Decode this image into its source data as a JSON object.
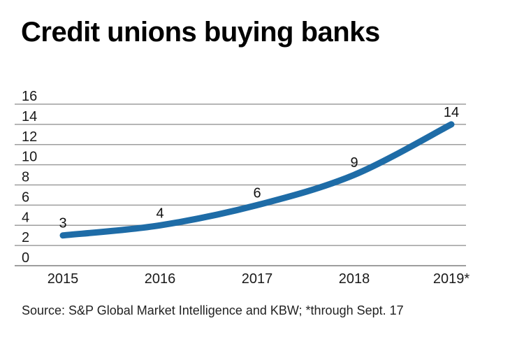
{
  "chart_data": {
    "type": "line",
    "title": "Credit unions buying banks",
    "categories": [
      "2015",
      "2016",
      "2017",
      "2018",
      "2019*"
    ],
    "values": [
      3,
      4,
      6,
      9,
      14
    ],
    "data_labels": [
      "3",
      "4",
      "6",
      "9",
      "14"
    ],
    "yticks": [
      0,
      2,
      4,
      6,
      8,
      10,
      12,
      14,
      16
    ],
    "ylim": [
      0,
      16
    ],
    "xlabel": "",
    "ylabel": "",
    "grid": true,
    "legend": false,
    "line_color": "#1E6CA7",
    "grid_color": "#9E9E9E",
    "text_color": "#1a1a1a"
  },
  "source_note": "Source: S&P Global Market Intelligence and KBW; *through Sept. 17"
}
